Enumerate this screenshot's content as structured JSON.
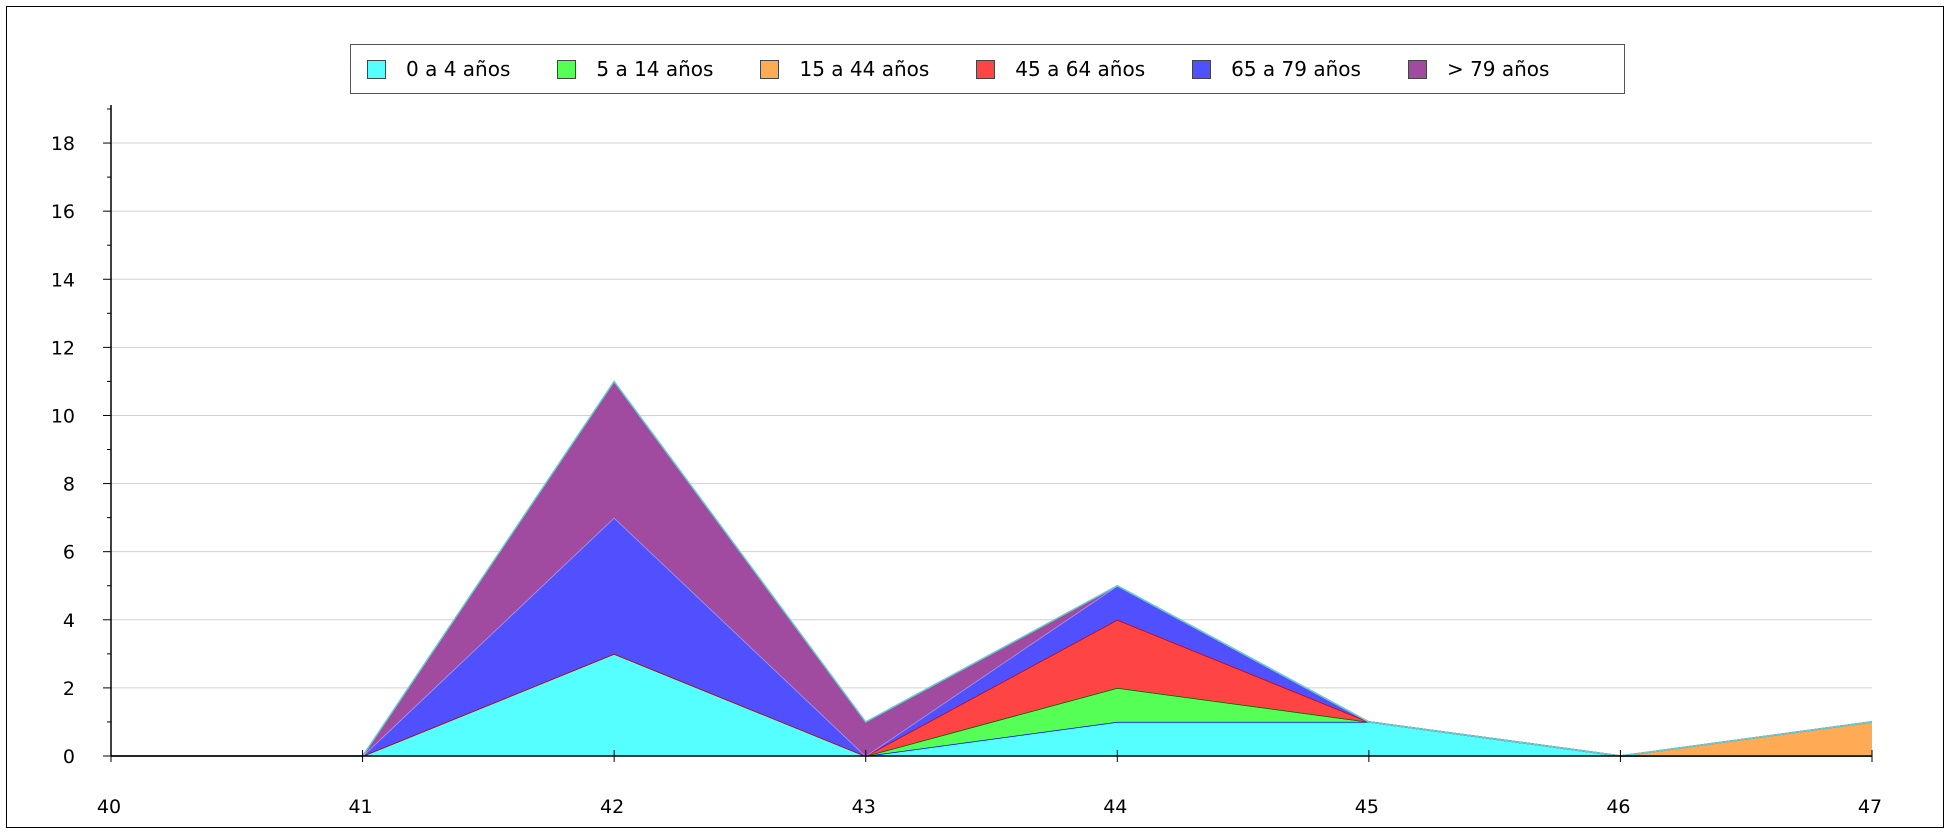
{
  "chart_data": {
    "type": "area",
    "stacked": true,
    "x": [
      40,
      41,
      42,
      43,
      44,
      45,
      46,
      47
    ],
    "series": [
      {
        "name": "0 a 4 años",
        "color": "#55ffff",
        "edge": "#0000ee",
        "values": [
          0,
          0,
          3,
          0,
          1,
          1,
          0,
          0
        ]
      },
      {
        "name": "5 a 14 años",
        "color": "#55ff55",
        "edge": "#00aa00",
        "values": [
          0,
          0,
          0,
          0,
          1,
          0,
          0,
          0
        ]
      },
      {
        "name": "15 a 44 años",
        "color": "#ffaa55",
        "edge": "#006600",
        "values": [
          0,
          0,
          0,
          0,
          0,
          0,
          0,
          1
        ]
      },
      {
        "name": "45 a 64 años",
        "color": "#ff4444",
        "edge": "#cc0000",
        "values": [
          0,
          0,
          0,
          0,
          2,
          0,
          0,
          0
        ]
      },
      {
        "name": "65 a 79 años",
        "color": "#5050ff",
        "edge": "#a0a0ff",
        "values": [
          0,
          0,
          4,
          0,
          1,
          0,
          0,
          0
        ]
      },
      {
        "name": "> 79 años",
        "color": "#a04aa0",
        "edge": "#66cccc",
        "values": [
          0,
          0,
          4,
          1,
          0,
          0,
          0,
          0
        ]
      }
    ],
    "xlim": [
      40,
      47
    ],
    "ylim": [
      0,
      19
    ],
    "yticks": [
      0,
      2,
      4,
      6,
      8,
      10,
      12,
      14,
      16,
      18
    ],
    "xticks": [
      40,
      41,
      42,
      43,
      44,
      45,
      46,
      47
    ],
    "grid": true,
    "legend_position": "top"
  }
}
